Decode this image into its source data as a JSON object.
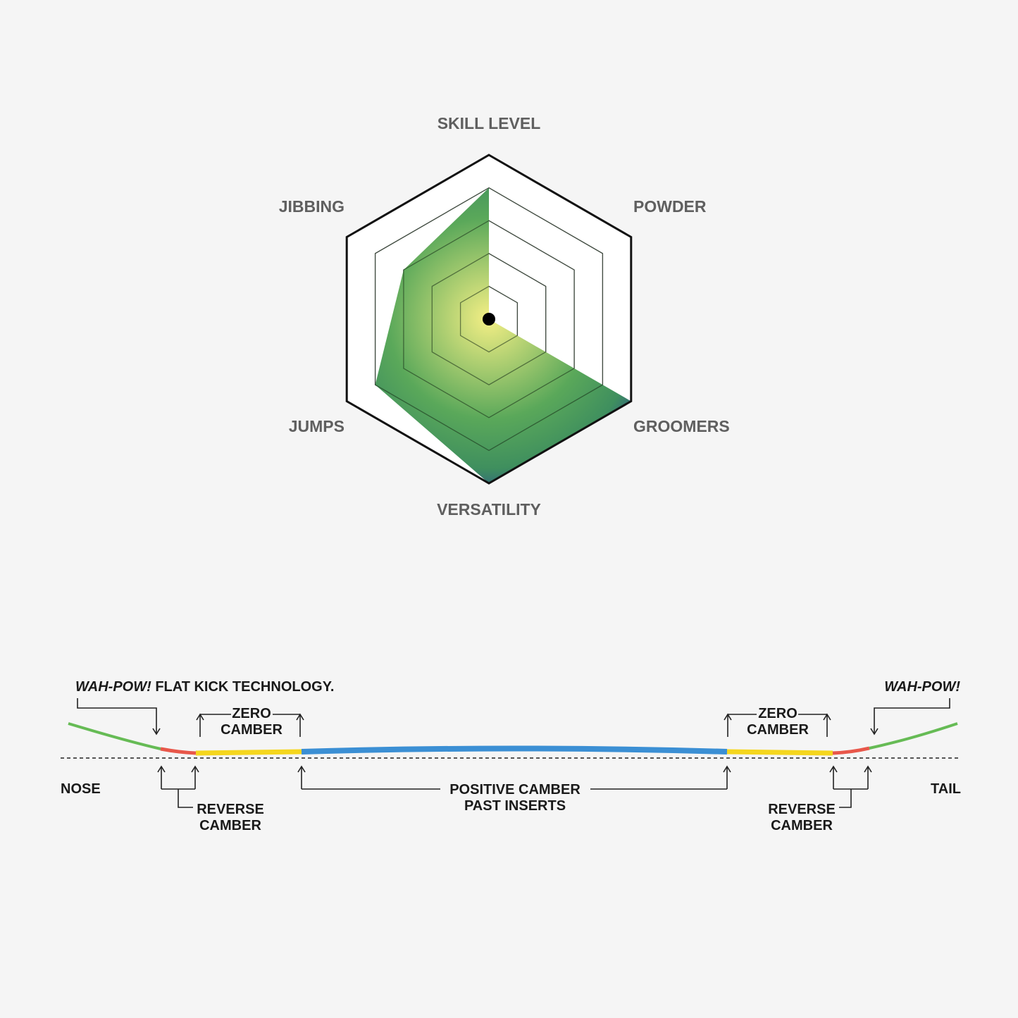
{
  "chart_data": [
    {
      "type": "radar",
      "axes": [
        "SKILL LEVEL",
        "POWDER",
        "GROOMERS",
        "VERSATILITY",
        "JUMPS",
        "JIBBING"
      ],
      "scale_max": 5,
      "rings": 5,
      "values": [
        4,
        0,
        5,
        5,
        4,
        3
      ],
      "fill_colors": {
        "center": "#f4ef85",
        "mid": "#5aa85a",
        "edge": "#2a4f8e"
      }
    },
    {
      "type": "profile",
      "labels": {
        "nose": "NOSE",
        "tail": "TAIL",
        "tech_italic": "WAH-POW!",
        "tech_rest": " FLAT KICK TECHNOLOGY.",
        "tail_tech": "WAH-POW!",
        "zero_camber_1": "ZERO",
        "zero_camber_2": "CAMBER",
        "reverse_camber_1": "REVERSE",
        "reverse_camber_2": "CAMBER",
        "positive_1": "POSITIVE CAMBER",
        "positive_2": "PAST INSERTS"
      },
      "segments": [
        "WAH-POW!",
        "REVERSE CAMBER",
        "ZERO CAMBER",
        "POSITIVE CAMBER PAST INSERTS",
        "ZERO CAMBER",
        "REVERSE CAMBER",
        "WAH-POW!"
      ],
      "colors": {
        "wah_pow": "#66bb55",
        "reverse": "#e8574a",
        "zero": "#f5d61e",
        "positive": "#3b8fd4"
      }
    }
  ]
}
